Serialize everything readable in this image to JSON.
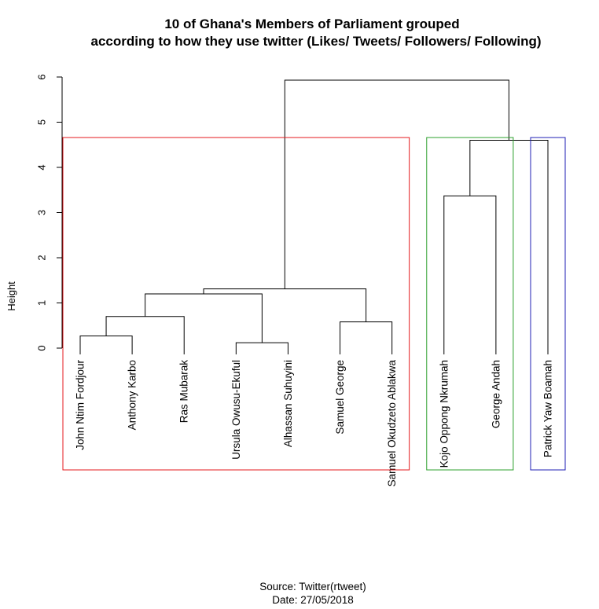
{
  "chart_data": {
    "type": "dendrogram",
    "title_line1": "10 of Ghana's Members of Parliament grouped",
    "title_line2": "according to how they use twitter (Likes/ Tweets/ Followers/ Following)",
    "xlabel": "",
    "ylabel": "Height",
    "ylim": [
      0,
      6
    ],
    "yticks": [
      "0",
      "1",
      "2",
      "3",
      "4",
      "5",
      "6"
    ],
    "leaves": [
      "John Ntim Fordjour",
      "Anthony Karbo",
      "Ras Mubarak",
      "Ursula Owusu-Ekuful",
      "Alhassan Suhuyini",
      "Samuel George",
      "Samuel Okudzeto Ablakwa",
      "Kojo Oppong Nkrumah",
      "George Andah",
      "Patrick Yaw Boamah"
    ],
    "merges": [
      {
        "left": "L0",
        "right": "L1",
        "height": 0.27
      },
      {
        "left": "L3",
        "right": "L4",
        "height": 0.12
      },
      {
        "left": "L5",
        "right": "L6",
        "height": 0.58
      },
      {
        "left": "M0",
        "right": "L2",
        "height": 0.7
      },
      {
        "left": "M3",
        "right": "M1",
        "height": 1.2
      },
      {
        "left": "M4",
        "right": "M2",
        "height": 1.31
      },
      {
        "left": "L7",
        "right": "L8",
        "height": 3.37
      },
      {
        "left": "M6",
        "right": "L9",
        "height": 4.6
      },
      {
        "left": "M5",
        "right": "M7",
        "height": 5.93
      }
    ],
    "clusters": [
      {
        "first_leaf": 0,
        "last_leaf": 6,
        "color": "#e41a1c"
      },
      {
        "first_leaf": 7,
        "last_leaf": 8,
        "color": "#2ca02c"
      },
      {
        "first_leaf": 9,
        "last_leaf": 9,
        "color": "#1f1fb4"
      }
    ]
  },
  "caption_line1": "Source: Twitter(rtweet)",
  "caption_line2": "Date: 27/05/2018"
}
